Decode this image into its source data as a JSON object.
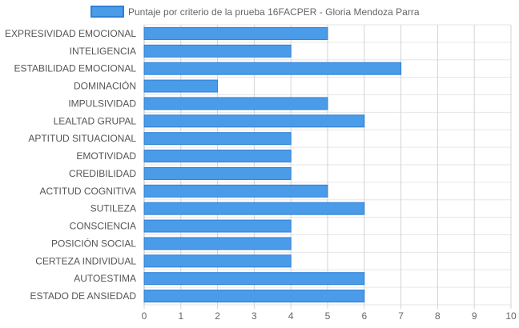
{
  "chart_data": {
    "type": "bar",
    "orientation": "horizontal",
    "title": "",
    "xlabel": "",
    "ylabel": "",
    "xlim": [
      0,
      10
    ],
    "x_ticks": [
      "0",
      "1",
      "2",
      "3",
      "4",
      "5",
      "6",
      "7",
      "8",
      "9",
      "10"
    ],
    "grid": true,
    "legend_position": "top-center",
    "categories": [
      "EXPRESIVIDAD EMOCIONAL",
      "INTELIGENCIA",
      "ESTABILIDAD EMOCIONAL",
      "DOMINACIÓN",
      "IMPULSIVIDAD",
      "LEALTAD GRUPAL",
      "APTITUD SITUACIONAL",
      "EMOTIVIDAD",
      "CREDIBILIDAD",
      "ACTITUD COGNITIVA",
      "SUTILEZA",
      "CONSCIENCIA",
      "POSICIÓN SOCIAL",
      "CERTEZA INDIVIDUAL",
      "AUTOESTIMA",
      "ESTADO DE ANSIEDAD"
    ],
    "series": [
      {
        "name": "Puntaje por criterio de la prueba 16FACPER - Gloria Mendoza Parra",
        "values": [
          5,
          4,
          7,
          2,
          5,
          6,
          4,
          4,
          4,
          5,
          6,
          4,
          4,
          4,
          6,
          6
        ],
        "color": "#4a9be8",
        "border_color": "#2f7fd6"
      }
    ]
  }
}
